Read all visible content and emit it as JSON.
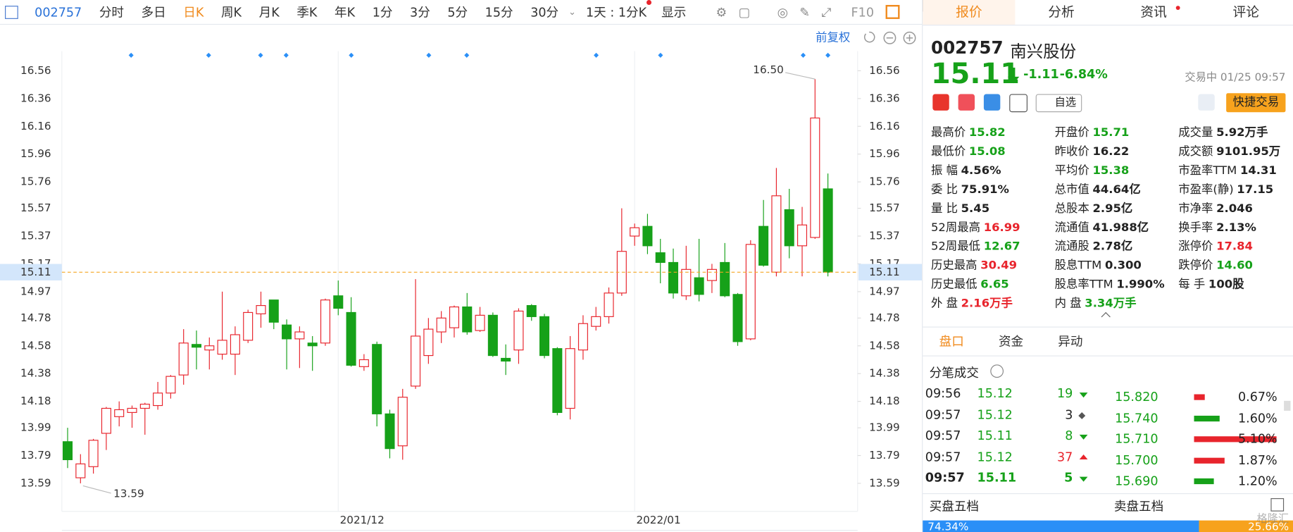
{
  "toolbar": {
    "code": "002757",
    "periods": [
      "分时",
      "多日",
      "日K",
      "周K",
      "月K",
      "季K",
      "年K",
      "1分",
      "3分",
      "5分",
      "15分",
      "30分"
    ],
    "interval": "1天 : 1分K",
    "display": "显示",
    "f10": "F10",
    "adjust": "前复权"
  },
  "chart_data": {
    "type": "candlestick",
    "categories": [
      null,
      null,
      null,
      null,
      null,
      null,
      null,
      null,
      null,
      null,
      null,
      null,
      null,
      null,
      null,
      null,
      null,
      null,
      null,
      null,
      null,
      "2021/12",
      null,
      null,
      null,
      null,
      null,
      null,
      null,
      null,
      null,
      null,
      null,
      null,
      null,
      null,
      null,
      null,
      null,
      null,
      null,
      null,
      null,
      null,
      "2022/01",
      null,
      null,
      null,
      null,
      null,
      null,
      null,
      null,
      null,
      null,
      null,
      null,
      null,
      null,
      null
    ],
    "open": [
      13.89,
      13.63,
      13.71,
      13.95,
      14.07,
      14.1,
      14.13,
      14.15,
      14.24,
      14.37,
      14.59,
      14.55,
      14.52,
      14.52,
      14.62,
      14.81,
      14.91,
      14.73,
      14.63,
      14.6,
      14.6,
      14.94,
      14.82,
      14.43,
      14.59,
      14.09,
      13.86,
      14.29,
      14.51,
      14.68,
      14.71,
      14.86,
      14.69,
      14.8,
      14.49,
      14.55,
      14.87,
      14.79,
      14.56,
      14.13,
      14.55,
      14.72,
      14.79,
      14.96,
      15.37,
      15.44,
      15.25,
      15.18,
      14.94,
      15.07,
      15.05,
      15.18,
      14.95,
      14.63,
      15.44,
      15.11,
      15.56,
      15.3,
      15.36,
      15.71
    ],
    "high": [
      13.99,
      13.8,
      13.91,
      14.14,
      14.18,
      14.15,
      14.17,
      14.32,
      14.37,
      14.7,
      14.69,
      14.64,
      14.97,
      14.72,
      14.84,
      14.97,
      14.91,
      14.77,
      14.72,
      14.65,
      14.92,
      15.05,
      14.93,
      14.52,
      14.61,
      14.12,
      14.27,
      15.06,
      14.78,
      14.83,
      14.87,
      14.96,
      14.86,
      14.82,
      14.59,
      14.85,
      14.88,
      14.81,
      14.57,
      14.65,
      14.8,
      14.86,
      15.0,
      15.57,
      15.46,
      15.53,
      15.35,
      15.28,
      15.3,
      15.35,
      15.17,
      15.32,
      14.96,
      15.34,
      15.63,
      15.86,
      15.71,
      15.58,
      16.5,
      15.82
    ],
    "low": [
      13.7,
      13.59,
      13.66,
      13.83,
      14.0,
      13.99,
      13.94,
      14.12,
      14.2,
      14.3,
      14.41,
      14.41,
      14.48,
      14.37,
      14.6,
      14.71,
      14.7,
      14.41,
      14.42,
      14.4,
      14.58,
      14.8,
      14.43,
      14.4,
      14.0,
      13.77,
      13.76,
      14.27,
      14.45,
      14.6,
      14.64,
      14.66,
      14.68,
      14.5,
      14.37,
      14.45,
      14.76,
      14.49,
      14.08,
      14.05,
      14.48,
      14.69,
      14.74,
      14.94,
      15.3,
      15.24,
      15.03,
      14.92,
      14.91,
      14.9,
      14.96,
      14.93,
      14.58,
      14.62,
      15.15,
      15.08,
      15.21,
      15.08,
      15.35,
      15.08
    ],
    "close": [
      13.76,
      13.73,
      13.9,
      14.13,
      14.12,
      14.13,
      14.16,
      14.24,
      14.36,
      14.6,
      14.57,
      14.58,
      14.62,
      14.66,
      14.82,
      14.87,
      14.75,
      14.63,
      14.68,
      14.58,
      14.91,
      14.85,
      14.44,
      14.48,
      14.09,
      13.84,
      14.21,
      14.65,
      14.7,
      14.78,
      14.86,
      14.68,
      14.8,
      14.51,
      14.47,
      14.83,
      14.79,
      14.51,
      14.1,
      14.56,
      14.74,
      14.79,
      14.96,
      15.26,
      15.43,
      15.3,
      15.18,
      14.96,
      15.13,
      14.95,
      15.13,
      14.94,
      14.61,
      15.31,
      15.16,
      15.66,
      15.3,
      15.45,
      16.22,
      15.11
    ],
    "up_color": "#e8242c",
    "down_color": "#16a119",
    "ylim": [
      13.4,
      16.82
    ],
    "yticks": [
      13.59,
      13.79,
      13.99,
      14.18,
      14.38,
      14.58,
      14.78,
      14.97,
      15.17,
      15.37,
      15.57,
      15.76,
      15.96,
      16.16,
      16.36,
      16.56
    ],
    "max_label": "16.50",
    "min_label": "13.59",
    "last_price": {
      "value": 15.11,
      "label": "15.11"
    }
  },
  "tabs": [
    "报价",
    "分析",
    "资讯",
    "评论"
  ],
  "quote": {
    "code": "002757",
    "name": "南兴股份",
    "price": "15.11",
    "change": "-1.11",
    "change_pct": "-6.84%",
    "status": "交易中 01/25 09:57",
    "watch": "自选",
    "trade": "快捷交易"
  },
  "stats": [
    {
      "label": "最高价",
      "value": "15.82",
      "tone": "down"
    },
    {
      "label": "开盘价",
      "value": "15.71",
      "tone": "down"
    },
    {
      "label": "成交量",
      "value": "5.92万手",
      "tone": "flat"
    },
    {
      "label": "最低价",
      "value": "15.08",
      "tone": "down"
    },
    {
      "label": "昨收价",
      "value": "16.22",
      "tone": "flat"
    },
    {
      "label": "成交额",
      "value": "9101.95万",
      "tone": "flat"
    },
    {
      "label": "振 幅",
      "value": "4.56%",
      "tone": "flat"
    },
    {
      "label": "平均价",
      "value": "15.38",
      "tone": "down"
    },
    {
      "label": "市盈率TTM",
      "value": "14.31",
      "tone": "flat"
    },
    {
      "label": "委 比",
      "value": "75.91%",
      "tone": "flat"
    },
    {
      "label": "总市值",
      "value": "44.64亿",
      "tone": "flat"
    },
    {
      "label": "市盈率(静)",
      "value": "17.15",
      "tone": "flat"
    },
    {
      "label": "量 比",
      "value": "5.45",
      "tone": "flat"
    },
    {
      "label": "总股本",
      "value": "2.95亿",
      "tone": "flat"
    },
    {
      "label": "市净率",
      "value": "2.046",
      "tone": "flat"
    },
    {
      "label": "52周最高",
      "value": "16.99",
      "tone": "up"
    },
    {
      "label": "流通值",
      "value": "41.988亿",
      "tone": "flat"
    },
    {
      "label": "换手率",
      "value": "2.13%",
      "tone": "flat"
    },
    {
      "label": "52周最低",
      "value": "12.67",
      "tone": "down"
    },
    {
      "label": "流通股",
      "value": "2.78亿",
      "tone": "flat"
    },
    {
      "label": "涨停价",
      "value": "17.84",
      "tone": "up"
    },
    {
      "label": "历史最高",
      "value": "30.49",
      "tone": "up"
    },
    {
      "label": "股息TTM",
      "value": "0.300",
      "tone": "flat"
    },
    {
      "label": "跌停价",
      "value": "14.60",
      "tone": "down"
    },
    {
      "label": "历史最低",
      "value": "6.65",
      "tone": "down"
    },
    {
      "label": "股息率TTM",
      "value": "1.990%",
      "tone": "flat"
    },
    {
      "label": "每 手",
      "value": "100股",
      "tone": "flat"
    },
    {
      "label": "外 盘",
      "value": "2.16万手",
      "tone": "up"
    },
    {
      "label": "内 盘",
      "value": "3.34万手",
      "tone": "down"
    }
  ],
  "sub_tabs": [
    "盘口",
    "资金",
    "异动"
  ],
  "trades": {
    "title": "分笔成交",
    "rows": [
      {
        "time": "09:56",
        "price": "15.12",
        "volume": "19",
        "dir": "down"
      },
      {
        "time": "09:57",
        "price": "15.12",
        "volume": "3",
        "dir": "flat"
      },
      {
        "time": "09:57",
        "price": "15.11",
        "volume": "8",
        "dir": "down"
      },
      {
        "time": "09:57",
        "price": "15.12",
        "volume": "37",
        "dir": "up"
      },
      {
        "time": "09:57",
        "price": "15.11",
        "volume": "5",
        "dir": "down"
      }
    ]
  },
  "depth": [
    {
      "price": "15.820",
      "pct": {
        "value": 0.67,
        "label": "0.67%"
      },
      "color": "#e8242c"
    },
    {
      "price": "15.740",
      "pct": {
        "value": 1.6,
        "label": "1.60%"
      },
      "color": "#16a119"
    },
    {
      "price": "15.710",
      "pct": {
        "value": 5.1,
        "label": "5.10%"
      },
      "color": "#e8242c"
    },
    {
      "price": "15.700",
      "pct": {
        "value": 1.87,
        "label": "1.87%"
      },
      "color": "#e8242c"
    },
    {
      "price": "15.690",
      "pct": {
        "value": 1.2,
        "label": "1.20%"
      },
      "color": "#16a119"
    }
  ],
  "book": {
    "buy_title": "买盘五档",
    "sell_title": "卖盘五档",
    "buy": {
      "value": 74.34,
      "label": "74.34%"
    },
    "sell": {
      "value": 25.66,
      "label": "25.66%"
    }
  },
  "watermark": "格隆汇"
}
